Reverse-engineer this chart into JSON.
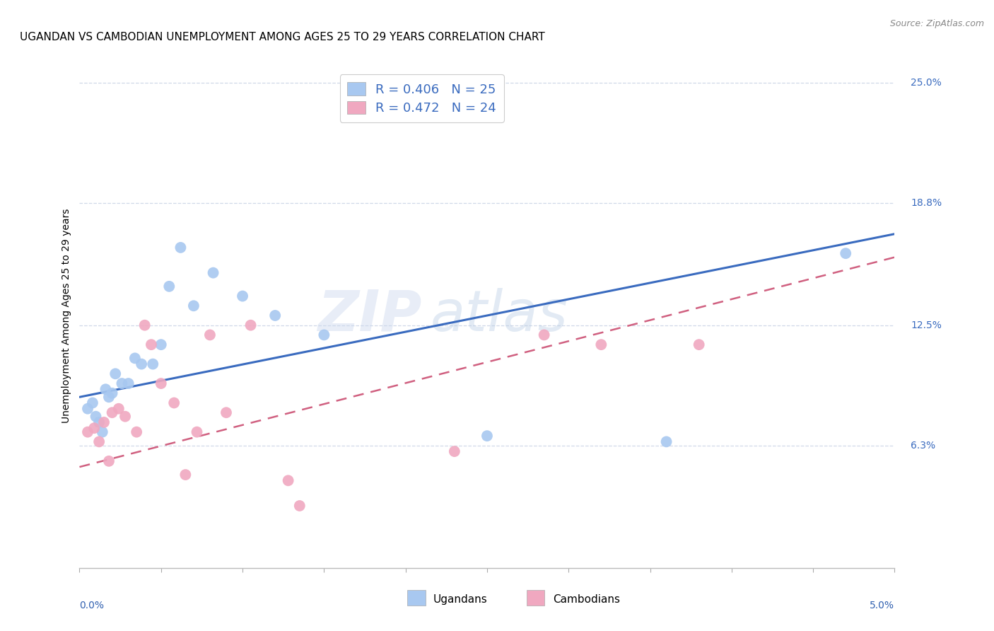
{
  "title": "UGANDAN VS CAMBODIAN UNEMPLOYMENT AMONG AGES 25 TO 29 YEARS CORRELATION CHART",
  "source": "Source: ZipAtlas.com",
  "ylabel": "Unemployment Among Ages 25 to 29 years",
  "x_min": 0.0,
  "x_max": 5.0,
  "y_min": 0.0,
  "y_max": 26.0,
  "y_ticks": [
    6.3,
    12.5,
    18.8,
    25.0
  ],
  "y_tick_labels": [
    "6.3%",
    "12.5%",
    "18.8%",
    "25.0%"
  ],
  "ugandan_color": "#a8c8f0",
  "cambodian_color": "#f0a8c0",
  "ugandan_line_color": "#3a6bbf",
  "cambodian_line_color": "#d06080",
  "background_color": "#ffffff",
  "grid_color": "#d0d8e8",
  "legend_R_ugandan": "R = 0.406",
  "legend_N_ugandan": "N = 25",
  "legend_R_cambodian": "R = 0.472",
  "legend_N_cambodian": "N = 24",
  "watermark_text": "ZIP",
  "watermark_text2": "atlas",
  "ugandan_x": [
    0.05,
    0.08,
    0.1,
    0.12,
    0.14,
    0.16,
    0.18,
    0.2,
    0.22,
    0.26,
    0.3,
    0.34,
    0.38,
    0.45,
    0.5,
    0.55,
    0.62,
    0.7,
    0.82,
    1.0,
    1.2,
    1.5,
    2.5,
    3.6,
    4.7
  ],
  "ugandan_y": [
    8.2,
    8.5,
    7.8,
    7.5,
    7.0,
    9.2,
    8.8,
    9.0,
    10.0,
    9.5,
    9.5,
    10.8,
    10.5,
    10.5,
    11.5,
    14.5,
    16.5,
    13.5,
    15.2,
    14.0,
    13.0,
    12.0,
    6.8,
    6.5,
    16.2
  ],
  "cambodian_x": [
    0.05,
    0.09,
    0.12,
    0.15,
    0.18,
    0.2,
    0.24,
    0.28,
    0.35,
    0.4,
    0.44,
    0.5,
    0.58,
    0.65,
    0.72,
    0.8,
    0.9,
    1.05,
    1.28,
    1.35,
    2.3,
    2.85,
    3.2,
    3.8
  ],
  "cambodian_y": [
    7.0,
    7.2,
    6.5,
    7.5,
    5.5,
    8.0,
    8.2,
    7.8,
    7.0,
    12.5,
    11.5,
    9.5,
    8.5,
    4.8,
    7.0,
    12.0,
    8.0,
    12.5,
    4.5,
    3.2,
    6.0,
    12.0,
    11.5,
    11.5
  ],
  "ugandan_trend_x": [
    0.0,
    5.0
  ],
  "ugandan_trend_y": [
    8.8,
    17.2
  ],
  "cambodian_trend_x": [
    0.0,
    5.0
  ],
  "cambodian_trend_y": [
    5.2,
    16.0
  ],
  "title_fontsize": 11,
  "axis_label_fontsize": 10,
  "tick_fontsize": 10,
  "legend_fontsize": 13,
  "marker_size": 130
}
